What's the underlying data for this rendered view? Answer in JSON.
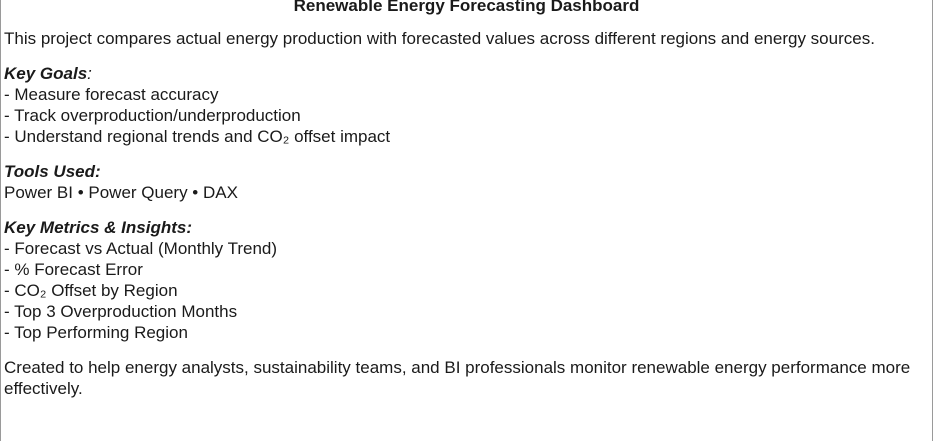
{
  "title": "Renewable Energy Forecasting Dashboard",
  "intro": "This project compares actual energy production with forecasted values across different regions and energy sources.",
  "key_goals": {
    "heading": "Key Goals",
    "colon": ":",
    "items": [
      "- Measure forecast accuracy",
      "- Track overproduction/underproduction",
      "- Understand regional trends and CO₂ offset impact"
    ]
  },
  "tools": {
    "heading": "Tools Used:",
    "value": "Power BI • Power Query • DAX"
  },
  "metrics": {
    "heading": "Key Metrics & Insights:",
    "items": [
      "- Forecast vs Actual (Monthly Trend)",
      "- % Forecast Error",
      "- CO₂ Offset by Region",
      "- Top 3 Overproduction Months",
      "- Top Performing Region"
    ]
  },
  "footer": "Created to help energy analysts, sustainability teams, and BI professionals monitor renewable energy performance more effectively."
}
